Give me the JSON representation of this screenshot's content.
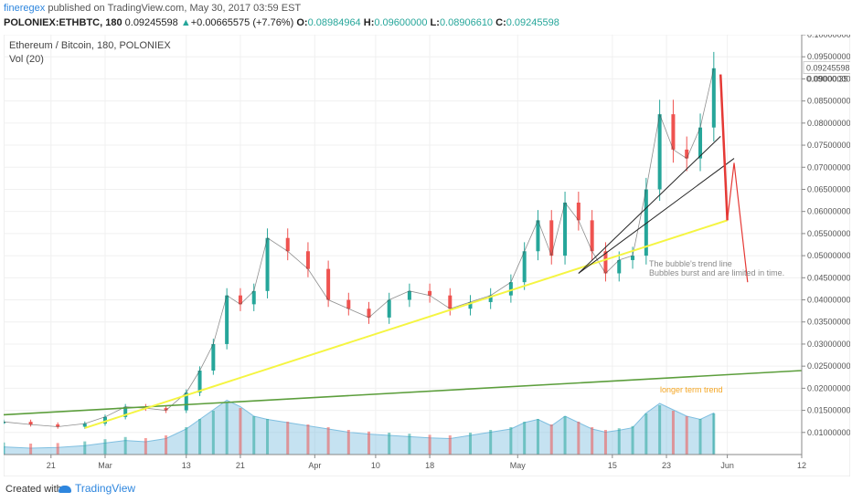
{
  "header": {
    "user": "fineregex",
    "published_text": " published on TradingView.com, May 30, 2017 03:59 EST",
    "symbol": "POLONIEX:ETHBTC, 180",
    "last": "0.09245598",
    "change_arrow": "▲",
    "change": "+0.00665575 (+7.76%)",
    "o_label": "O:",
    "o": "0.08984964",
    "h_label": "H:",
    "h": "0.09600000",
    "l_label": "L:",
    "l": "0.08906610",
    "c_label": "C:",
    "c": "0.09245598"
  },
  "chart_title": "Ethereum / Bitcoin, 180, POLONIEX",
  "vol_label": "Vol (20)",
  "footer": {
    "created": "Created with",
    "brand": "TradingView"
  },
  "colors": {
    "up": "#26a69a",
    "down": "#ef5350",
    "yellow": "#f5f542",
    "green": "#5c9e3c",
    "red": "#e53935",
    "vol": "#7fbfe0"
  },
  "chart_data": {
    "type": "line",
    "title": "Ethereum / Bitcoin, 180, POLONIEX",
    "ylim": [
      0.005,
      0.1
    ],
    "y_scale": "linear",
    "price_label": "0.09245598",
    "countdown_label": "00:35",
    "partial_label": "0.090",
    "y_ticks": [
      0.1,
      0.095,
      0.09,
      0.085,
      0.08,
      0.075,
      0.07,
      0.065,
      0.06,
      0.055,
      0.05,
      0.045,
      0.04,
      0.035,
      0.03,
      0.025,
      0.02,
      0.015,
      0.01
    ],
    "y_tick_labels": [
      "0.10000000",
      "0.09500000",
      "0.09000000",
      "0.08500000",
      "0.08000000",
      "0.07500000",
      "0.07000000",
      "0.06500000",
      "0.06000000",
      "0.05500000",
      "0.05000000",
      "0.04500000",
      "0.04000000",
      "0.03500000",
      "0.03000000",
      "0.02500000",
      "0.02000000",
      "0.01500000",
      "0.01000000"
    ],
    "x_ticks": [
      "2017-02-21",
      "2017-03-01",
      "2017-03-13",
      "2017-03-21",
      "2017-04-01",
      "2017-04-10",
      "2017-04-18",
      "2017-05-01",
      "2017-05-15",
      "2017-05-23",
      "2017-06-01",
      "2017-06-12"
    ],
    "x_tick_labels": [
      "21",
      "Mar",
      "13",
      "21",
      "Apr",
      "10",
      "18",
      "May",
      "15",
      "23",
      "Jun",
      "12"
    ],
    "x_range": [
      "2017-02-14",
      "2017-06-12"
    ],
    "series": [
      {
        "x": [
          "2017-02-14",
          "2017-02-18",
          "2017-02-22",
          "2017-02-26",
          "2017-03-01",
          "2017-03-04",
          "2017-03-07",
          "2017-03-10",
          "2017-03-13",
          "2017-03-15",
          "2017-03-17",
          "2017-03-19",
          "2017-03-21",
          "2017-03-23",
          "2017-03-25",
          "2017-03-28",
          "2017-03-31",
          "2017-04-03",
          "2017-04-06",
          "2017-04-09",
          "2017-04-12",
          "2017-04-15",
          "2017-04-18",
          "2017-04-21",
          "2017-04-24",
          "2017-04-27",
          "2017-04-30",
          "2017-05-02",
          "2017-05-04",
          "2017-05-06",
          "2017-05-08",
          "2017-05-10",
          "2017-05-12",
          "2017-05-14",
          "2017-05-16",
          "2017-05-18",
          "2017-05-20",
          "2017-05-22",
          "2017-05-24",
          "2017-05-26",
          "2017-05-28",
          "2017-05-30"
        ],
        "values": [
          0.0124,
          0.0118,
          0.0113,
          0.012,
          0.0135,
          0.0158,
          0.0155,
          0.015,
          0.019,
          0.024,
          0.03,
          0.041,
          0.039,
          0.042,
          0.054,
          0.051,
          0.047,
          0.04,
          0.038,
          0.036,
          0.04,
          0.042,
          0.041,
          0.038,
          0.0395,
          0.041,
          0.044,
          0.051,
          0.058,
          0.05,
          0.062,
          0.058,
          0.051,
          0.046,
          0.049,
          0.05,
          0.065,
          0.082,
          0.074,
          0.072,
          0.079,
          0.0924
        ]
      }
    ],
    "volume": [
      0.12,
      0.1,
      0.11,
      0.14,
      0.18,
      0.22,
      0.2,
      0.25,
      0.4,
      0.55,
      0.7,
      0.85,
      0.75,
      0.6,
      0.55,
      0.5,
      0.45,
      0.4,
      0.35,
      0.32,
      0.3,
      0.28,
      0.26,
      0.25,
      0.3,
      0.35,
      0.4,
      0.5,
      0.55,
      0.45,
      0.6,
      0.5,
      0.4,
      0.35,
      0.38,
      0.42,
      0.65,
      0.8,
      0.7,
      0.6,
      0.55,
      0.65
    ],
    "annotations": [
      {
        "text": "The bubble's trend line",
        "color": "#888888"
      },
      {
        "text": "Bubbles burst and are limited in time.",
        "color": "#888888"
      },
      {
        "text": "longer term trend",
        "color": "#f5a623"
      }
    ]
  }
}
